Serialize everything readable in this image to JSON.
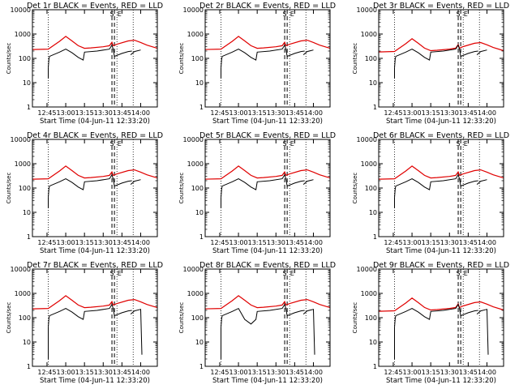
{
  "chart_data": {
    "type": "line",
    "xlabel": "Start Time (04-Jun-11 12:33:20)",
    "ylabel": "Counts/sec",
    "yscale": "log",
    "ylim": [
      1,
      10000
    ],
    "yticks": [
      "1",
      "10",
      "100",
      "1000",
      "10000"
    ],
    "xlim": [
      "12:33:20",
      "14:13:20"
    ],
    "xticks": [
      {
        "time": "12:45",
        "label": "12:45"
      },
      {
        "time": "13:00",
        "label": "13:00"
      },
      {
        "time": "13:15",
        "label": "13:15"
      },
      {
        "time": "13:30",
        "label": "13:30"
      },
      {
        "time": "13:45",
        "label": "13:45"
      },
      {
        "time": "14:00",
        "label": "14:00"
      }
    ],
    "series_legend": {
      "black": "Events",
      "red": "LLD"
    },
    "series_colors": {
      "black": "#000000",
      "red": "#e00000"
    },
    "markers": {
      "dotted_times": [
        "12:46",
        "13:41",
        "13:54"
      ],
      "dashed_times": [
        "13:37",
        "13:39"
      ],
      "dashed_labels": [
        {
          "time": "13:37",
          "text": "S"
        },
        {
          "time": "13:43",
          "text": "E"
        }
      ]
    },
    "panels": [
      {
        "title": "Det 1r BLACK = Events, RED = LLD",
        "black_end_gap": false,
        "black_dip": false,
        "low_red": false
      },
      {
        "title": "Det 2r BLACK = Events, RED = LLD",
        "black_end_gap": false,
        "black_dip": false,
        "low_red": false
      },
      {
        "title": "Det 3r BLACK = Events, RED = LLD",
        "black_end_gap": false,
        "black_dip": false,
        "low_red": true
      },
      {
        "title": "Det 4r BLACK = Events, RED = LLD",
        "black_end_gap": false,
        "black_dip": false,
        "low_red": false
      },
      {
        "title": "Det 5r BLACK = Events, RED = LLD",
        "black_end_gap": false,
        "black_dip": false,
        "low_red": false
      },
      {
        "title": "Det 6r BLACK = Events, RED = LLD",
        "black_end_gap": false,
        "black_dip": false,
        "low_red": false
      },
      {
        "title": "Det 7r BLACK = Events, RED = LLD",
        "black_end_gap": true,
        "black_dip": false,
        "low_red": false
      },
      {
        "title": "Det 8r BLACK = Events, RED = LLD",
        "black_end_gap": true,
        "black_dip": true,
        "low_red": false
      },
      {
        "title": "Det 9r BLACK = Events, RED = LLD",
        "black_end_gap": true,
        "black_dip": false,
        "low_red": true
      }
    ],
    "profile": {
      "red": [
        [
          "12:33:20",
          230
        ],
        [
          "12:46",
          240
        ],
        [
          "12:55",
          500
        ],
        [
          "13:00",
          800
        ],
        [
          "13:05",
          520
        ],
        [
          "13:10",
          330
        ],
        [
          "13:15",
          260
        ],
        [
          "13:20",
          270
        ],
        [
          "13:30",
          300
        ],
        [
          "13:35",
          330
        ],
        [
          "13:37",
          460
        ],
        [
          "13:38",
          330
        ],
        [
          "13:41",
          380
        ],
        [
          "13:50",
          520
        ],
        [
          "13:55",
          560
        ],
        [
          "14:00",
          450
        ],
        [
          "14:05",
          350
        ],
        [
          "14:13:20",
          260
        ]
      ],
      "black_main": [
        [
          "12:46",
          40
        ],
        [
          "12:46:30",
          90
        ],
        [
          "12:47",
          120
        ],
        [
          "12:55",
          180
        ],
        [
          "13:00",
          240
        ],
        [
          "13:05",
          170
        ],
        [
          "13:10",
          110
        ],
        [
          "13:14",
          85
        ],
        [
          "13:15",
          180
        ],
        [
          "13:25",
          200
        ],
        [
          "13:35",
          240
        ],
        [
          "13:37",
          350
        ],
        [
          "13:38",
          240
        ],
        [
          "13:39",
          120
        ],
        [
          "13:45",
          160
        ],
        [
          "13:50",
          190
        ],
        [
          "13:53",
          200
        ]
      ],
      "black_segment2": [
        [
          "13:52",
          140
        ],
        [
          "13:55",
          190
        ],
        [
          "14:00",
          220
        ]
      ]
    }
  }
}
